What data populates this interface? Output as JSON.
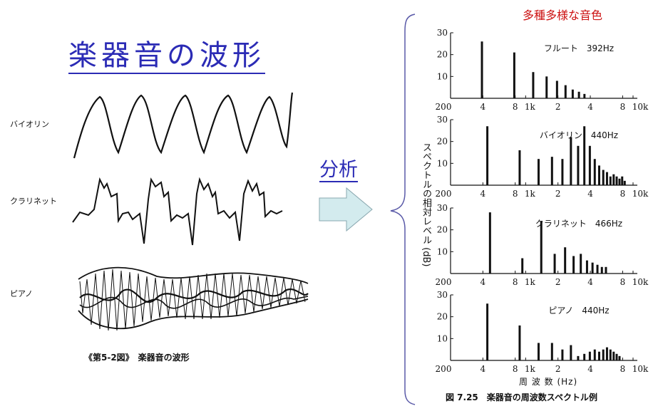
{
  "title": "楽器音の波形",
  "analysis_label": "分析",
  "diversity_label": "多種多様な音色",
  "waveform_labels": [
    "バイオリン",
    "クラリネット",
    "ピアノ"
  ],
  "left_caption": "《第5-2図》　楽器音の波形",
  "spectrum": {
    "y_axis_label": "スペクトルの相対レベル (dB)",
    "x_axis_label": "周 波 数 (Hz)",
    "caption": "図 7.25　楽器音の周波数スペクトル例"
  },
  "chart_data": [
    {
      "type": "bar",
      "title": "フルート　392Hz",
      "ylabel": "スペクトルの相対レベル (dB)",
      "xlabel": "周 波 数 (Hz)",
      "x_scale": "log",
      "xlim": [
        200,
        10000
      ],
      "ylim": [
        0,
        30
      ],
      "x_ticks": [
        "200",
        "4",
        "8",
        "1k",
        "2",
        "4",
        "8",
        "10k"
      ],
      "y_ticks": [
        "10",
        "20",
        "30"
      ],
      "x": [
        392,
        784,
        1176,
        1568,
        1960,
        2352,
        2744,
        3136,
        3528
      ],
      "values": [
        26,
        21,
        12,
        10,
        8,
        6,
        4,
        3,
        2
      ]
    },
    {
      "type": "bar",
      "title": "バイオリン　440Hz",
      "x_scale": "log",
      "xlim": [
        200,
        10000
      ],
      "ylim": [
        0,
        30
      ],
      "x_ticks": [
        "200",
        "4",
        "8",
        "1k",
        "2",
        "4",
        "8",
        "10k"
      ],
      "y_ticks": [
        "10",
        "20",
        "30"
      ],
      "x": [
        440,
        880,
        1320,
        1760,
        2200,
        2640,
        3080,
        3520,
        3960,
        4400,
        4840,
        5280,
        5720,
        6160,
        6600,
        7040,
        7480,
        7920,
        8360
      ],
      "values": [
        27,
        16,
        12,
        13,
        12,
        22,
        18,
        27,
        18,
        12,
        9,
        7,
        6,
        4,
        5,
        4,
        3,
        4,
        2
      ]
    },
    {
      "type": "bar",
      "title": "クラリネット　466Hz",
      "x_scale": "log",
      "xlim": [
        200,
        10000
      ],
      "ylim": [
        0,
        30
      ],
      "x_ticks": [
        "200",
        "4",
        "8",
        "1k",
        "2",
        "4",
        "8",
        "10k"
      ],
      "y_ticks": [
        "10",
        "20",
        "30"
      ],
      "x": [
        466,
        932,
        1398,
        1864,
        2330,
        2796,
        3262,
        3728,
        4194,
        4660,
        5126,
        5592
      ],
      "values": [
        28,
        7,
        24,
        9,
        12,
        8,
        9,
        6,
        5,
        4,
        3,
        3
      ]
    },
    {
      "type": "bar",
      "title": "ピアノ　440Hz",
      "x_scale": "log",
      "xlim": [
        200,
        10000
      ],
      "ylim": [
        0,
        30
      ],
      "x_ticks": [
        "200",
        "4",
        "8",
        "1k",
        "2",
        "4",
        "8",
        "10k"
      ],
      "y_ticks": [
        "10",
        "20",
        "30"
      ],
      "x": [
        440,
        880,
        1320,
        1760,
        2200,
        2640,
        3080,
        3520,
        3960,
        4400,
        4840,
        5280,
        5720,
        6160,
        6600,
        7040,
        7480
      ],
      "values": [
        26,
        16,
        8,
        8,
        5,
        7,
        2,
        3,
        4,
        5,
        4,
        5,
        6,
        5,
        4,
        3,
        2
      ]
    }
  ]
}
